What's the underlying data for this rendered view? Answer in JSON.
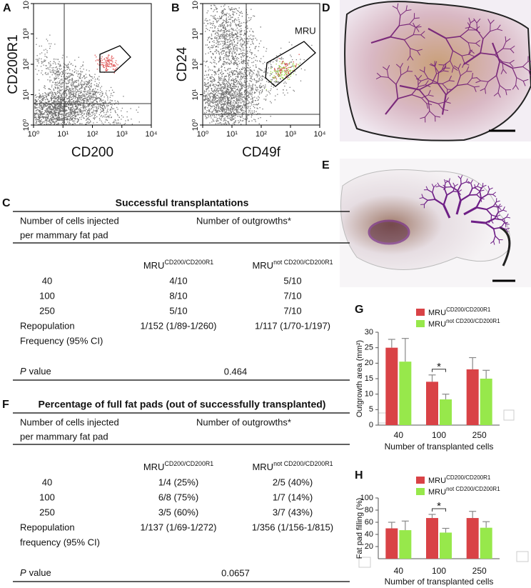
{
  "panel_labels": [
    "A",
    "B",
    "C",
    "D",
    "E",
    "F",
    "G",
    "H"
  ],
  "flow_plots": [
    {
      "x_label": "CD200",
      "y_label": "CD200R1",
      "log": true,
      "xlim": [
        1,
        10000
      ],
      "ylim": [
        1,
        10000
      ],
      "xticks": [
        {
          "value": 1,
          "label": "10⁰"
        },
        {
          "value": 10,
          "label": "10¹"
        },
        {
          "value": 100,
          "label": "10²"
        },
        {
          "value": 1000,
          "label": "10³"
        },
        {
          "value": 10000,
          "label": "10⁴"
        }
      ],
      "yticks": [
        {
          "value": 1,
          "label": "10⁰"
        },
        {
          "value": 10,
          "label": "10¹"
        },
        {
          "value": 100,
          "label": "10²"
        },
        {
          "value": 1000,
          "label": "10³"
        },
        {
          "value": 10000,
          "label": "10⁴"
        }
      ]
    },
    {
      "x_label": "CD49f",
      "y_label": "CD24",
      "gate_label": "MRU",
      "log": true,
      "xlim": [
        1,
        10000
      ],
      "ylim": [
        1,
        10000
      ],
      "xticks": [
        {
          "value": 1,
          "label": "10⁰"
        },
        {
          "value": 10,
          "label": "10¹"
        },
        {
          "value": 100,
          "label": "10²"
        },
        {
          "value": 1000,
          "label": "10³"
        },
        {
          "value": 10000,
          "label": "10⁴"
        }
      ],
      "yticks": [
        {
          "value": 1,
          "label": "10⁰"
        },
        {
          "value": 10,
          "label": "10¹"
        },
        {
          "value": 100,
          "label": "10²"
        },
        {
          "value": 1000,
          "label": "10³"
        },
        {
          "value": 10000,
          "label": "10⁴"
        }
      ]
    }
  ],
  "tables": [
    {
      "title": "Successful transplantations",
      "header": {
        "cells_line1": "Number of cells injected",
        "cells_line2": "per mammary fat pad",
        "outgrowths": "Number of outgrowths*"
      },
      "columns": [
        {
          "main": "MRU",
          "sup": "CD200/CD200R1"
        },
        {
          "main": "MRU",
          "sup": "not CD200/CD200R1"
        }
      ],
      "rows": [
        [
          "40",
          "4/10",
          "5/10"
        ],
        [
          "100",
          "8/10",
          "7/10"
        ],
        [
          "250",
          "5/10",
          "7/10"
        ]
      ],
      "repopulation": {
        "line1": "Repopulation",
        "line2": "Frequency (95% CI)",
        "values": [
          "1/152 (1/89-1/260)",
          "1/117 (1/70-1/197)"
        ]
      },
      "p": {
        "italic": "P",
        "text": "value",
        "value": 0.464
      }
    },
    {
      "title": "Percentage of full fat pads (out of successfully transplanted)",
      "header": {
        "cells_line1": "Number of cells injected",
        "cells_line2": "per mammary fat pad",
        "outgrowths": "Number of outgrowths*"
      },
      "columns": [
        {
          "main": "MRU",
          "sup": "CD200/CD200R1"
        },
        {
          "main": "MRU",
          "sup": "not CD200/CD200R1"
        }
      ],
      "rows": [
        [
          "40",
          "1/4 (25%)",
          "2/5 (40%)"
        ],
        [
          "100",
          "6/8 (75%)",
          "1/7 (14%)"
        ],
        [
          "250",
          "3/5 (60%)",
          "3/7 (43%)"
        ]
      ],
      "repopulation": {
        "line1": "Repopulation",
        "line2": "frequency (95% CI)",
        "values": [
          "1/137 (1/69-1/272)",
          "1/356 (1/156-1/815)"
        ]
      },
      "p": {
        "italic": "P",
        "text": "value",
        "value": 0.0657
      }
    }
  ],
  "chart_data": [
    {
      "type": "bar",
      "y_label": "Outgrowth area (mm²)",
      "x_label": "Number of transplanted cells",
      "categories": [
        "40",
        "100",
        "250"
      ],
      "series": [
        {
          "name": "MRU",
          "name_sup": "CD200/CD200R1",
          "color": "#d94246",
          "values": [
            25,
            14,
            18
          ],
          "errors": [
            2.7,
            2.2,
            3.8
          ]
        },
        {
          "name": "MRU",
          "name_sup": "not CD200/CD200R1",
          "color": "#97e84b",
          "values": [
            20.5,
            8.3,
            15
          ],
          "errors": [
            7.5,
            1.7,
            2.7
          ]
        }
      ],
      "ylim": [
        0,
        30
      ],
      "yticks": [
        0,
        5,
        10,
        15,
        20,
        25,
        30
      ],
      "annotation": "*"
    },
    {
      "type": "bar",
      "y_label": "Fat pad filling (%)",
      "x_label": "Number of transplanted cells",
      "categories": [
        "40",
        "100",
        "250"
      ],
      "series": [
        {
          "name": "MRU",
          "name_sup": "CD200/CD200R1",
          "color": "#d94246",
          "values": [
            50,
            67,
            67
          ],
          "errors": [
            10,
            6,
            11
          ]
        },
        {
          "name": "MRU",
          "name_sup": "not CD200/CD200R1",
          "color": "#97e84b",
          "values": [
            47,
            43,
            51
          ],
          "errors": [
            15,
            7,
            10
          ]
        }
      ],
      "ylim": [
        0,
        100
      ],
      "yticks": [
        20,
        40,
        60,
        80,
        100
      ],
      "annotation": "*"
    }
  ]
}
